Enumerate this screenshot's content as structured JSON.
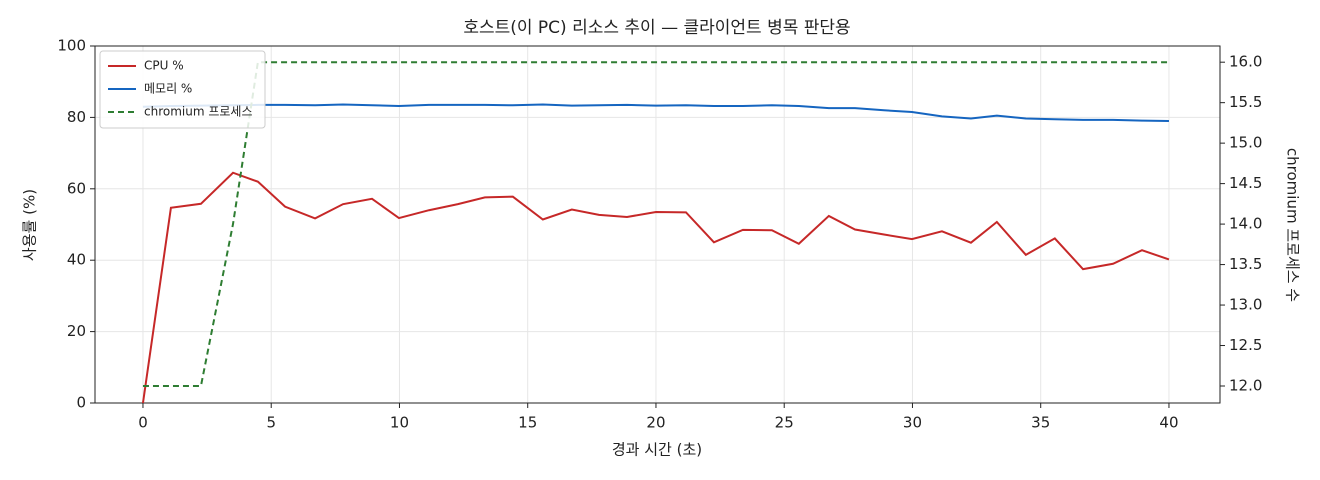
{
  "chart_data": {
    "type": "line",
    "title": "호스트(이 PC) 리소스 추이 — 클라이언트 병목 판단용",
    "x_label": "경과 시간 (초)",
    "y_label": "사용률 (%)",
    "y2_label": "chromium 프로세스 수",
    "x": [
      0,
      1.09,
      2.26,
      3.51,
      4.48,
      5.54,
      6.71,
      7.8,
      8.93,
      9.98,
      11.15,
      12.28,
      13.33,
      14.42,
      15.59,
      16.72,
      17.78,
      18.87,
      20.0,
      21.17,
      22.26,
      23.39,
      24.52,
      25.57,
      26.74,
      27.76,
      28.89,
      29.98,
      31.15,
      32.28,
      33.29,
      34.42,
      35.55,
      36.65,
      37.82,
      38.95,
      40.0
    ],
    "series": [
      {
        "name": "CPU %",
        "color": "#c62828",
        "linestyle": "solid",
        "values": [
          0,
          54.7,
          55.8,
          64.5,
          62,
          55,
          51.7,
          55.7,
          57.2,
          51.8,
          54,
          55.7,
          57.6,
          57.8,
          51.4,
          54.2,
          52.7,
          52.1,
          53.5,
          53.4,
          45,
          48.5,
          48.4,
          44.6,
          52.4,
          48.6,
          47.2,
          45.9,
          48.1,
          44.9,
          50.7,
          41.5,
          46.1,
          37.5,
          39,
          42.8,
          40.2
        ]
      },
      {
        "name": "메모리 %",
        "color": "#1565c0",
        "linestyle": "solid",
        "values": [
          83,
          83.2,
          83.3,
          83.4,
          83.5,
          83.5,
          83.4,
          83.6,
          83.4,
          83.2,
          83.5,
          83.5,
          83.5,
          83.4,
          83.6,
          83.3,
          83.4,
          83.5,
          83.3,
          83.4,
          83.2,
          83.2,
          83.4,
          83.2,
          82.6,
          82.6,
          82.0,
          81.5,
          80.3,
          79.7,
          80.5,
          79.7,
          79.5,
          79.3,
          79.3,
          79.1,
          79.0
        ]
      },
      {
        "name": "chromium 프로세스",
        "color": "#2e7d32",
        "linestyle": "dashed",
        "axis": "y2",
        "values": [
          12,
          12,
          12,
          14,
          16,
          16,
          16,
          16,
          16,
          16,
          16,
          16,
          16,
          16,
          16,
          16,
          16,
          16,
          16,
          16,
          16,
          16,
          16,
          16,
          16,
          16,
          16,
          16,
          16,
          16,
          16,
          16,
          16,
          16,
          16,
          16,
          16
        ]
      }
    ],
    "xlim": [
      -1.87,
      41.99
    ],
    "xticks": [
      0,
      5,
      10,
      15,
      20,
      25,
      30,
      35,
      40
    ],
    "ylim": [
      0,
      100
    ],
    "yticks": [
      0,
      20,
      40,
      60,
      80,
      100
    ],
    "y2lim": [
      11.79,
      16.2
    ],
    "y2ticks": [
      {
        "value": 12,
        "label": "12.0"
      },
      {
        "value": 12.5,
        "label": "12.5"
      },
      {
        "value": 13,
        "label": "13.0"
      },
      {
        "value": 13.5,
        "label": "13.5"
      },
      {
        "value": 14,
        "label": "14.0"
      },
      {
        "value": 14.5,
        "label": "14.5"
      },
      {
        "value": 15,
        "label": "15.0"
      },
      {
        "value": 15.5,
        "label": "15.5"
      },
      {
        "value": 16,
        "label": "16.0"
      }
    ],
    "grid": true,
    "legend": "upper left"
  }
}
